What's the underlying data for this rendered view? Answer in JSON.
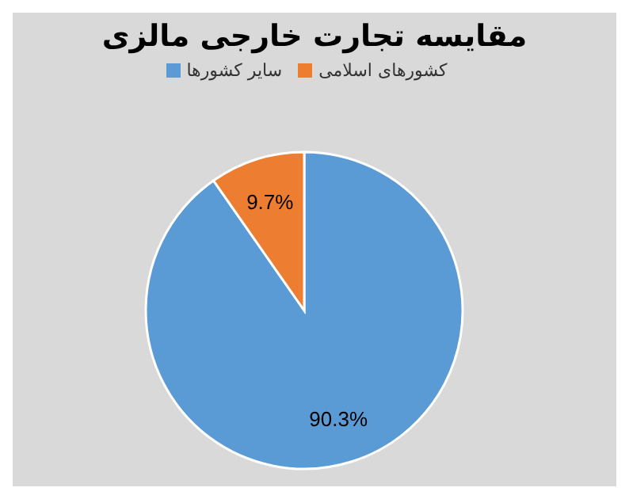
{
  "chart_data": {
    "type": "pie",
    "title": "مقایسه تجارت خارجی مالزی",
    "categories": [
      "سایر کشورها",
      "کشورهای اسلامی"
    ],
    "values": [
      90.3,
      9.7
    ],
    "colors": [
      "#5b9bd5",
      "#ed7d31"
    ],
    "value_labels": [
      "90.3%",
      "9.7%"
    ],
    "legend": "top"
  }
}
